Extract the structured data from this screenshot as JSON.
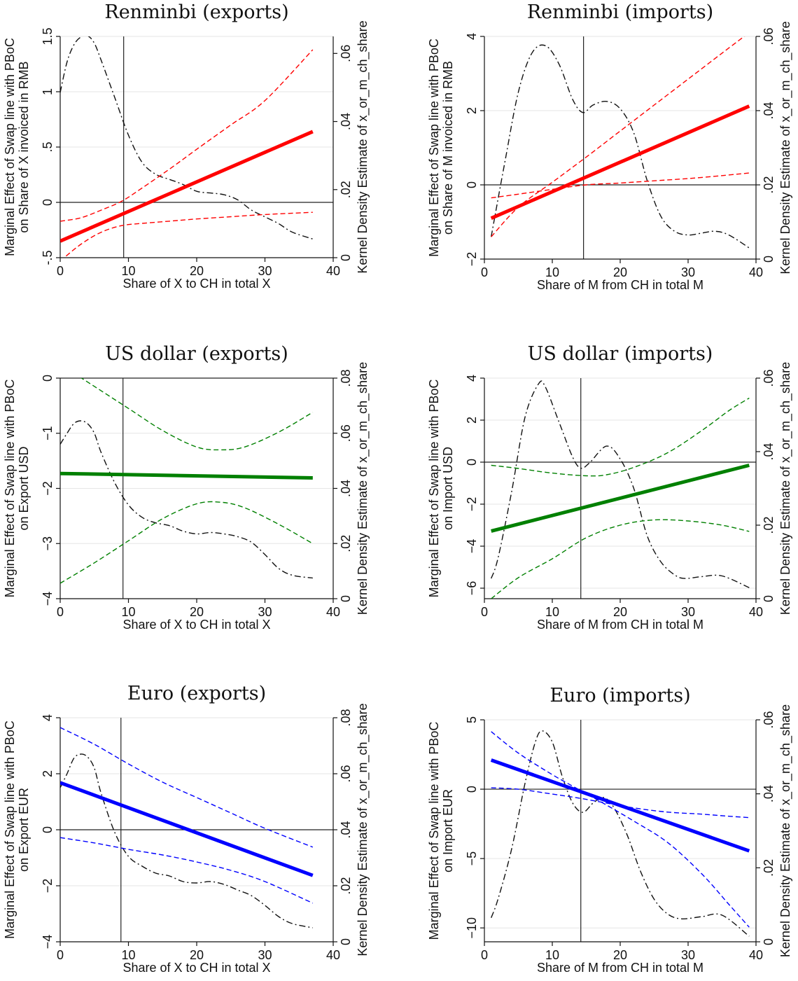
{
  "chart_data": [
    {
      "type": "line",
      "title": "Renminbi (exports)",
      "xlabel": "Share of X to CH in total X",
      "ylabel": [
        "Marginal Effect of Swap line with PBoC",
        "on Share of X invoiced in RMB"
      ],
      "y2label": "Kernel Density Estimate of x_or_m_ch_share",
      "xlim": [
        0,
        40
      ],
      "ylim": [
        -0.5,
        1.5
      ],
      "y2lim": [
        0,
        0.065
      ],
      "xticks": [
        0,
        10,
        20,
        30,
        40
      ],
      "yticks": [
        -0.5,
        0,
        0.5,
        1,
        1.5
      ],
      "ytick_labels": [
        "-.5",
        "0",
        ".5",
        "1",
        "1.5"
      ],
      "y2ticks": [
        0,
        0.02,
        0.04,
        0.06
      ],
      "y2tick_labels": [
        "0",
        ".02",
        ".04",
        ".06"
      ],
      "ygrid": [
        0,
        0.5,
        1,
        1.5
      ],
      "mean_x": 9.3,
      "color": "#ff0000",
      "effect": {
        "x": [
          0,
          37
        ],
        "y": [
          -0.35,
          0.64
        ]
      },
      "ci_upper": {
        "x": [
          0,
          3,
          6,
          9,
          12,
          16,
          20,
          25,
          30,
          37
        ],
        "y": [
          -0.17,
          -0.14,
          -0.07,
          0.01,
          0.13,
          0.3,
          0.48,
          0.7,
          0.92,
          1.38
        ]
      },
      "ci_lower": {
        "x": [
          0,
          3,
          6,
          9,
          12,
          16,
          20,
          25,
          30,
          37
        ],
        "y": [
          -0.53,
          -0.38,
          -0.27,
          -0.21,
          -0.19,
          -0.17,
          -0.15,
          -0.13,
          -0.11,
          -0.09
        ]
      },
      "density": {
        "x": [
          0,
          1,
          2,
          3,
          4,
          5,
          6,
          8,
          10,
          12,
          14,
          16,
          18,
          20,
          22,
          24,
          26,
          28,
          30,
          32,
          34,
          37
        ],
        "y": [
          0.0485,
          0.0575,
          0.0625,
          0.0648,
          0.0652,
          0.063,
          0.058,
          0.047,
          0.036,
          0.028,
          0.0245,
          0.023,
          0.0215,
          0.0195,
          0.019,
          0.0185,
          0.017,
          0.014,
          0.012,
          0.01,
          0.0075,
          0.0055
        ]
      }
    },
    {
      "type": "line",
      "title": "Renminbi (imports)",
      "xlabel": "Share of M from CH in total M",
      "ylabel": [
        "Marginal Effect of Swap line with PBoC",
        "on Share of M invoiced in RMB"
      ],
      "y2label": "Kernel Density Estimate of x_or_m_ch_share",
      "xlim": [
        0,
        40
      ],
      "ylim": [
        -2,
        4
      ],
      "y2lim": [
        0,
        0.06
      ],
      "xticks": [
        0,
        10,
        20,
        30,
        40
      ],
      "yticks": [
        -2,
        0,
        2,
        4
      ],
      "ytick_labels": [
        "−2",
        "0",
        "2",
        "4"
      ],
      "y2ticks": [
        0,
        0.02,
        0.04,
        0.06
      ],
      "y2tick_labels": [
        "0",
        ".02",
        ".04",
        ".06"
      ],
      "ygrid": [
        -2,
        0,
        2,
        4
      ],
      "mean_x": 14.6,
      "color": "#ff0000",
      "effect": {
        "x": [
          1,
          39
        ],
        "y": [
          -0.9,
          2.12
        ]
      },
      "ci_upper": {
        "x": [
          1,
          5,
          10,
          15,
          20,
          25,
          30,
          35,
          39
        ],
        "y": [
          -1.4,
          -0.6,
          0.07,
          0.75,
          1.45,
          2.15,
          2.85,
          3.55,
          4.1
        ]
      },
      "ci_lower": {
        "x": [
          1,
          5,
          10,
          15,
          20,
          25,
          30,
          35,
          39
        ],
        "y": [
          -0.35,
          -0.25,
          -0.12,
          0.0,
          0.05,
          0.11,
          0.17,
          0.25,
          0.32
        ]
      },
      "density": {
        "x": [
          1,
          3,
          5,
          7,
          9,
          11,
          13,
          14.5,
          16,
          18,
          20,
          22,
          24,
          26,
          28,
          30,
          32,
          34,
          36,
          39
        ],
        "y": [
          0.006,
          0.026,
          0.045,
          0.0555,
          0.0575,
          0.0525,
          0.043,
          0.0395,
          0.0415,
          0.0425,
          0.0405,
          0.034,
          0.021,
          0.0115,
          0.0075,
          0.0065,
          0.007,
          0.0075,
          0.0065,
          0.003
        ]
      }
    },
    {
      "type": "line",
      "title": "US dollar (exports)",
      "xlabel": "Share of X to CH in total X",
      "ylabel": [
        "Marginal Effect of Swap line with PBoC",
        "on Export USD"
      ],
      "y2label": "Kernel Density Estimate of x_or_m_ch_share",
      "xlim": [
        0,
        40
      ],
      "ylim": [
        -4,
        0
      ],
      "y2lim": [
        0,
        0.08
      ],
      "xticks": [
        0,
        10,
        20,
        30,
        40
      ],
      "yticks": [
        -4,
        -3,
        -2,
        -1,
        0
      ],
      "ytick_labels": [
        "−4",
        "−3",
        "−2",
        "−1",
        "0"
      ],
      "y2ticks": [
        0,
        0.02,
        0.04,
        0.06,
        0.08
      ],
      "y2tick_labels": [
        "0",
        ".02",
        ".04",
        ".06",
        ".08"
      ],
      "ygrid": [
        -4,
        -3,
        -2,
        -1,
        0
      ],
      "mean_x": 9.2,
      "color": "#008000",
      "effect": {
        "x": [
          0,
          37
        ],
        "y": [
          -1.73,
          -1.81
        ]
      },
      "ci_upper": {
        "x": [
          0,
          5,
          10,
          15,
          20,
          23.5,
          27,
          32,
          37
        ],
        "y": [
          0.25,
          -0.15,
          -0.55,
          -0.95,
          -1.25,
          -1.3,
          -1.25,
          -0.98,
          -0.62
        ]
      },
      "ci_lower": {
        "x": [
          0,
          5,
          10,
          15,
          20,
          23.5,
          27,
          32,
          37
        ],
        "y": [
          -3.72,
          -3.35,
          -2.95,
          -2.55,
          -2.28,
          -2.25,
          -2.35,
          -2.65,
          -3.0
        ]
      },
      "density": {
        "x": [
          0,
          1,
          2,
          3,
          4,
          5,
          6,
          8,
          10,
          12,
          14,
          16,
          18,
          20,
          22,
          24,
          26,
          28,
          30,
          32,
          34,
          37
        ],
        "y": [
          0.056,
          0.06,
          0.0635,
          0.0645,
          0.0635,
          0.06,
          0.053,
          0.042,
          0.034,
          0.0295,
          0.0275,
          0.0265,
          0.0245,
          0.0235,
          0.024,
          0.0235,
          0.0225,
          0.0205,
          0.016,
          0.011,
          0.0085,
          0.0075
        ]
      }
    },
    {
      "type": "line",
      "title": "US dollar (imports)",
      "xlabel": "Share of M from CH in total M",
      "ylabel": [
        "Marginal Effect of Swap line with PBoC",
        "on Import USD"
      ],
      "y2label": "Kernel Density Estimate of x_or_m_ch_share",
      "xlim": [
        0,
        40
      ],
      "ylim": [
        -6.5,
        4
      ],
      "y2lim": [
        0,
        0.06
      ],
      "xticks": [
        0,
        10,
        20,
        30,
        40
      ],
      "yticks": [
        -6,
        -4,
        -2,
        0,
        2,
        4
      ],
      "ytick_labels": [
        "−6",
        "−4",
        "−2",
        "0",
        "2",
        "4"
      ],
      "y2ticks": [
        0,
        0.02,
        0.04,
        0.06
      ],
      "y2tick_labels": [
        "0",
        ".02",
        ".04",
        ".06"
      ],
      "ygrid": [
        -6,
        -4,
        -2,
        0,
        2,
        4
      ],
      "mean_x": 14.2,
      "color": "#008000",
      "effect": {
        "x": [
          1,
          39
        ],
        "y": [
          -3.28,
          -0.15
        ]
      },
      "ci_upper": {
        "x": [
          1,
          5,
          10,
          15,
          18,
          22,
          27,
          32,
          36,
          39
        ],
        "y": [
          -0.15,
          -0.3,
          -0.52,
          -0.65,
          -0.6,
          -0.25,
          0.45,
          1.5,
          2.45,
          3.05
        ]
      },
      "ci_lower": {
        "x": [
          1,
          5,
          10,
          15,
          20,
          25,
          30,
          35,
          39
        ],
        "y": [
          -6.5,
          -5.5,
          -4.6,
          -3.6,
          -3.0,
          -2.75,
          -2.8,
          -3.0,
          -3.3
        ]
      },
      "density": {
        "x": [
          1,
          2,
          4,
          6,
          8,
          9,
          11,
          13,
          14.2,
          15.5,
          18,
          20,
          22,
          24,
          26,
          28,
          29.5,
          32,
          35,
          39
        ],
        "y": [
          0.0055,
          0.011,
          0.029,
          0.0495,
          0.0585,
          0.0575,
          0.048,
          0.0385,
          0.0355,
          0.037,
          0.0415,
          0.038,
          0.03,
          0.017,
          0.01,
          0.0065,
          0.0055,
          0.006,
          0.0062,
          0.003
        ]
      }
    },
    {
      "type": "line",
      "title": "Euro (exports)",
      "xlabel": "Share of X to CH in total X",
      "ylabel": [
        "Marginal Effect of Swap line with PBoC",
        "on Export EUR"
      ],
      "y2label": "Kernel Density Estimate of x_or_m_ch_share",
      "xlim": [
        0,
        40
      ],
      "ylim": [
        -4,
        4
      ],
      "y2lim": [
        0,
        0.08
      ],
      "xticks": [
        0,
        10,
        20,
        30,
        40
      ],
      "yticks": [
        -4,
        -2,
        0,
        2,
        4
      ],
      "ytick_labels": [
        "−4",
        "−2",
        "0",
        "2",
        "4"
      ],
      "y2ticks": [
        0,
        0.02,
        0.04,
        0.06,
        0.08
      ],
      "y2tick_labels": [
        "0",
        ".02",
        ".04",
        ".06",
        ".08"
      ],
      "ygrid": [
        -4,
        -2,
        0,
        2,
        4
      ],
      "mean_x": 8.9,
      "color": "#0000ff",
      "effect": {
        "x": [
          0,
          37
        ],
        "y": [
          1.68,
          -1.63
        ]
      },
      "ci_upper": {
        "x": [
          0,
          5,
          10,
          15,
          20,
          25,
          30,
          37
        ],
        "y": [
          3.65,
          3.05,
          2.35,
          1.7,
          1.15,
          0.6,
          0.05,
          -0.62
        ]
      },
      "ci_lower": {
        "x": [
          0,
          5,
          10,
          15,
          20,
          25,
          30,
          37
        ],
        "y": [
          -0.28,
          -0.47,
          -0.7,
          -0.9,
          -1.15,
          -1.45,
          -1.85,
          -2.62
        ]
      },
      "density": {
        "x": [
          0,
          1,
          2,
          3,
          4,
          5,
          6,
          8,
          10,
          12,
          14,
          16,
          18,
          20,
          22,
          24,
          26,
          28,
          30,
          32,
          34,
          37
        ],
        "y": [
          0.055,
          0.06,
          0.0655,
          0.067,
          0.066,
          0.062,
          0.053,
          0.039,
          0.0305,
          0.027,
          0.0245,
          0.0235,
          0.0215,
          0.021,
          0.0215,
          0.0205,
          0.0185,
          0.0165,
          0.013,
          0.009,
          0.0065,
          0.005
        ]
      }
    },
    {
      "type": "line",
      "title": "Euro (imports)",
      "xlabel": "Share of M from CH in total M",
      "ylabel": [
        "Marginal Effect of Swap line with PBoC",
        "on Import EUR"
      ],
      "y2label": "Kernel Density Estimate of x_or_m_ch_share",
      "xlim": [
        0,
        40
      ],
      "ylim": [
        -11,
        5
      ],
      "y2lim": [
        0,
        0.06
      ],
      "xticks": [
        0,
        10,
        20,
        30,
        40
      ],
      "yticks": [
        -10,
        -5,
        0,
        5
      ],
      "ytick_labels": [
        "−10",
        "−5",
        "0",
        "5"
      ],
      "y2ticks": [
        0,
        0.02,
        0.04,
        0.06
      ],
      "y2tick_labels": [
        "0",
        ".02",
        ".04",
        ".06"
      ],
      "ygrid": [
        -10,
        -5,
        0,
        5
      ],
      "mean_x": 14.2,
      "color": "#0000ff",
      "effect": {
        "x": [
          1,
          39
        ],
        "y": [
          2.1,
          -4.45
        ]
      },
      "ci_upper": {
        "x": [
          1,
          5,
          10,
          14,
          18,
          22,
          27,
          32,
          36,
          39
        ],
        "y": [
          4.15,
          2.6,
          1.05,
          -0.05,
          -1.15,
          -2.3,
          -3.85,
          -6.1,
          -8.3,
          -9.95
        ]
      },
      "ci_lower": {
        "x": [
          1,
          5,
          10,
          14,
          18,
          22,
          27,
          32,
          36,
          39
        ],
        "y": [
          0.1,
          0.0,
          -0.35,
          -0.65,
          -1.0,
          -1.35,
          -1.65,
          -1.8,
          -1.95,
          -2.05
        ]
      },
      "density": {
        "x": [
          1,
          2,
          4,
          6,
          7.5,
          8.5,
          10,
          11.5,
          13,
          14.5,
          16,
          17.5,
          19,
          21,
          23,
          25,
          27,
          29,
          32,
          35,
          39
        ],
        "y": [
          0.0065,
          0.0115,
          0.025,
          0.043,
          0.054,
          0.057,
          0.054,
          0.0445,
          0.0375,
          0.035,
          0.0375,
          0.039,
          0.0365,
          0.029,
          0.019,
          0.0115,
          0.0075,
          0.0062,
          0.0068,
          0.0072,
          0.0015
        ]
      }
    }
  ]
}
